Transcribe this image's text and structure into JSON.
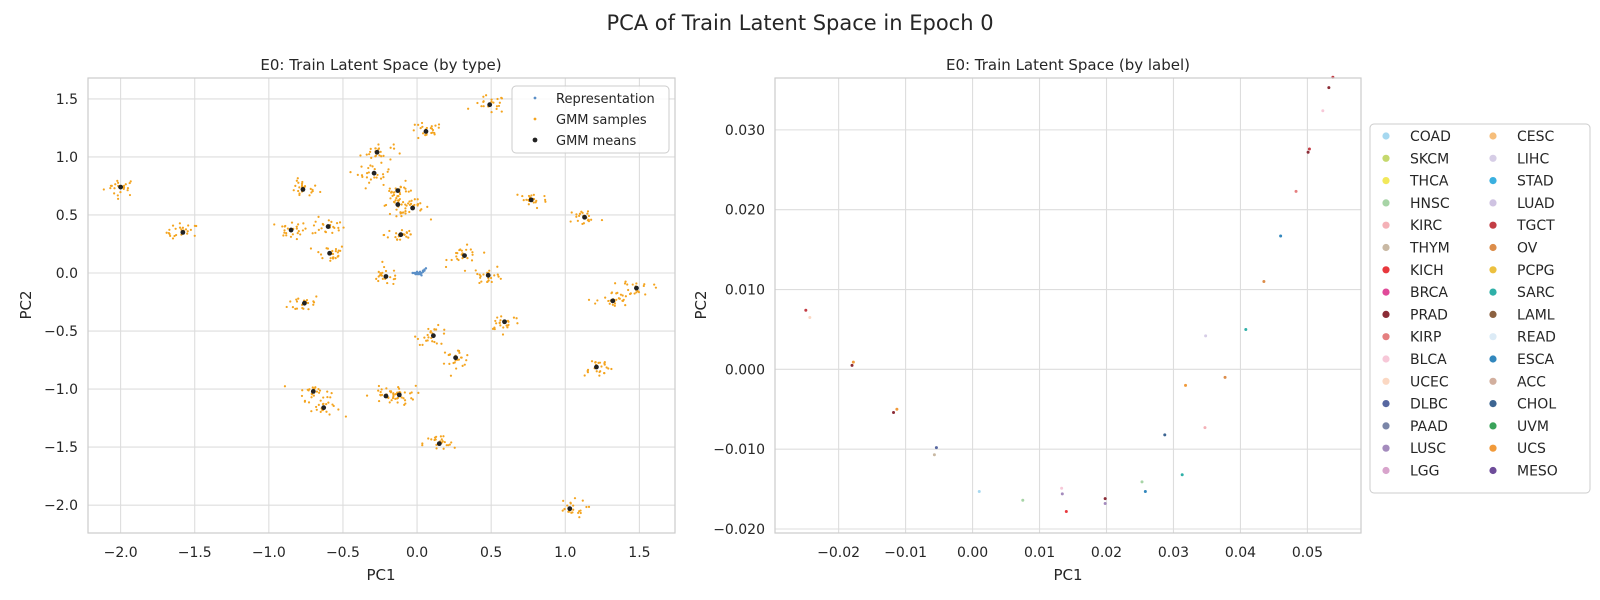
{
  "figure": {
    "title": "PCA of Train Latent Space in Epoch 0"
  },
  "chart_data": [
    {
      "type": "scatter",
      "title": "E0: Train Latent Space (by type)",
      "xlabel": "PC1",
      "ylabel": "PC2",
      "xlim": [
        -2.22,
        1.74
      ],
      "ylim": [
        -2.24,
        1.68
      ],
      "xticks": [
        -2.0,
        -1.5,
        -1.0,
        -0.5,
        0.0,
        0.5,
        1.0,
        1.5
      ],
      "xtick_labels": [
        "−2.0",
        "−1.5",
        "−1.0",
        "−0.5",
        "0.0",
        "0.5",
        "1.0",
        "1.5"
      ],
      "yticks": [
        -2.0,
        -1.5,
        -1.0,
        -0.5,
        0.0,
        0.5,
        1.0,
        1.5
      ],
      "ytick_labels": [
        "−2.0",
        "−1.5",
        "−1.0",
        "−0.5",
        "0.0",
        "0.5",
        "1.0",
        "1.5"
      ],
      "grid": true,
      "legend_position": "top-right",
      "series": [
        {
          "name": "Representation",
          "color": "#5b8fc7",
          "points": [
            [
              -0.03,
              0.0
            ],
            [
              -0.02,
              0.0
            ],
            [
              -0.01,
              0.0
            ],
            [
              0.0,
              -0.01
            ],
            [
              0.01,
              -0.01
            ],
            [
              0.02,
              -0.01
            ],
            [
              0.03,
              0.0
            ],
            [
              0.04,
              0.01
            ],
            [
              0.05,
              0.02
            ],
            [
              0.05,
              0.03
            ],
            [
              0.06,
              0.04
            ],
            [
              0.0,
              0.0
            ],
            [
              0.01,
              0.0
            ],
            [
              -0.01,
              -0.01
            ],
            [
              0.02,
              0.01
            ],
            [
              0.04,
              0.02
            ],
            [
              0.03,
              -0.02
            ],
            [
              0.0,
              0.01
            ]
          ]
        },
        {
          "name": "GMM samples",
          "color": "#f4a41f",
          "cluster_spread": 0.055,
          "samples_per_cluster": 24
        },
        {
          "name": "GMM means",
          "color": "#222222",
          "points": [
            [
              -2.0,
              0.74
            ],
            [
              -1.58,
              0.35
            ],
            [
              -0.85,
              0.37
            ],
            [
              -0.77,
              0.72
            ],
            [
              -0.6,
              0.4
            ],
            [
              -0.59,
              0.17
            ],
            [
              -0.76,
              -0.26
            ],
            [
              -0.7,
              -1.02
            ],
            [
              -0.63,
              -1.16
            ],
            [
              -0.27,
              1.04
            ],
            [
              -0.29,
              0.86
            ],
            [
              -0.13,
              0.71
            ],
            [
              -0.13,
              0.59
            ],
            [
              -0.03,
              0.56
            ],
            [
              -0.11,
              0.33
            ],
            [
              -0.21,
              -0.03
            ],
            [
              0.06,
              1.22
            ],
            [
              0.49,
              1.45
            ],
            [
              0.32,
              0.15
            ],
            [
              0.48,
              -0.02
            ],
            [
              0.11,
              -0.54
            ],
            [
              0.26,
              -0.73
            ],
            [
              -0.21,
              -1.06
            ],
            [
              -0.12,
              -1.05
            ],
            [
              0.15,
              -1.47
            ],
            [
              0.77,
              0.63
            ],
            [
              1.13,
              0.48
            ],
            [
              0.59,
              -0.42
            ],
            [
              1.32,
              -0.24
            ],
            [
              1.48,
              -0.13
            ],
            [
              1.21,
              -0.81
            ],
            [
              1.03,
              -2.03
            ]
          ]
        }
      ]
    },
    {
      "type": "scatter",
      "title": "E0: Train Latent Space (by label)",
      "xlabel": "PC1",
      "ylabel": "PC2",
      "xlim": [
        -0.0295,
        0.058
      ],
      "ylim": [
        -0.0205,
        0.0365
      ],
      "xticks": [
        -0.02,
        -0.01,
        0.0,
        0.01,
        0.02,
        0.03,
        0.04,
        0.05
      ],
      "xtick_labels": [
        "−0.02",
        "−0.01",
        "0.00",
        "0.01",
        "0.02",
        "0.03",
        "0.04",
        "0.05"
      ],
      "yticks": [
        -0.02,
        -0.01,
        0.0,
        0.01,
        0.02,
        0.03
      ],
      "ytick_labels": [
        "−0.020",
        "−0.010",
        "0.000",
        "0.010",
        "0.020",
        "0.030"
      ],
      "grid": true,
      "legend_position": "outside-right",
      "legend_columns": 2,
      "legend": [
        {
          "name": "COAD",
          "color": "#a6d8f0"
        },
        {
          "name": "SKCM",
          "color": "#c5d86d"
        },
        {
          "name": "THCA",
          "color": "#f2e85a"
        },
        {
          "name": "HNSC",
          "color": "#a7d4a6"
        },
        {
          "name": "KIRC",
          "color": "#f4b1b7"
        },
        {
          "name": "THYM",
          "color": "#c9b9a4"
        },
        {
          "name": "KICH",
          "color": "#e8383d"
        },
        {
          "name": "BRCA",
          "color": "#e04a99"
        },
        {
          "name": "PRAD",
          "color": "#8b2c36"
        },
        {
          "name": "KIRP",
          "color": "#e57f80"
        },
        {
          "name": "BLCA",
          "color": "#f7c8d8"
        },
        {
          "name": "UCEC",
          "color": "#fbd8c3"
        },
        {
          "name": "DLBC",
          "color": "#5767a0"
        },
        {
          "name": "PAAD",
          "color": "#7b86a8"
        },
        {
          "name": "LUSC",
          "color": "#a48bbd"
        },
        {
          "name": "LGG",
          "color": "#d8a4cc"
        },
        {
          "name": "CESC",
          "color": "#f6be7b"
        },
        {
          "name": "LIHC",
          "color": "#d6cde6"
        },
        {
          "name": "STAD",
          "color": "#3ab0e0"
        },
        {
          "name": "LUAD",
          "color": "#cfc3e2"
        },
        {
          "name": "TGCT",
          "color": "#c33d45"
        },
        {
          "name": "OV",
          "color": "#dc8d4a"
        },
        {
          "name": "PCPG",
          "color": "#ecc03f"
        },
        {
          "name": "SARC",
          "color": "#2fb0a8"
        },
        {
          "name": "LAML",
          "color": "#8c6140"
        },
        {
          "name": "READ",
          "color": "#dcebf6"
        },
        {
          "name": "ESCA",
          "color": "#3287bd"
        },
        {
          "name": "ACC",
          "color": "#d2af9e"
        },
        {
          "name": "CHOL",
          "color": "#3d6592"
        },
        {
          "name": "UVM",
          "color": "#3aa35a"
        },
        {
          "name": "UCS",
          "color": "#f19a3a"
        },
        {
          "name": "MESO",
          "color": "#6e4c9a"
        }
      ],
      "points": [
        {
          "x": 0.0538,
          "y": 0.0366,
          "label": "TGCT"
        },
        {
          "x": 0.0532,
          "y": 0.0353,
          "label": "PRAD"
        },
        {
          "x": 0.0523,
          "y": 0.0324,
          "label": "BLCA"
        },
        {
          "x": 0.0503,
          "y": 0.0276,
          "label": "TGCT"
        },
        {
          "x": 0.0501,
          "y": 0.0272,
          "label": "PRAD"
        },
        {
          "x": 0.0483,
          "y": 0.0223,
          "label": "KIRP"
        },
        {
          "x": 0.046,
          "y": 0.0167,
          "label": "ESCA"
        },
        {
          "x": 0.0435,
          "y": 0.011,
          "label": "OV"
        },
        {
          "x": 0.0408,
          "y": 0.005,
          "label": "SARC"
        },
        {
          "x": 0.0348,
          "y": 0.0042,
          "label": "LIHC"
        },
        {
          "x": 0.0377,
          "y": -0.001,
          "label": "OV"
        },
        {
          "x": 0.0318,
          "y": -0.002,
          "label": "UCS"
        },
        {
          "x": 0.0347,
          "y": -0.0073,
          "label": "KIRC"
        },
        {
          "x": 0.0287,
          "y": -0.0082,
          "label": "CHOL"
        },
        {
          "x": 0.0313,
          "y": -0.0132,
          "label": "SARC"
        },
        {
          "x": 0.0253,
          "y": -0.0141,
          "label": "HNSC"
        },
        {
          "x": 0.0258,
          "y": -0.0153,
          "label": "ESCA"
        },
        {
          "x": 0.0198,
          "y": -0.0162,
          "label": "PRAD"
        },
        {
          "x": 0.0198,
          "y": -0.0168,
          "label": "LUSC"
        },
        {
          "x": 0.014,
          "y": -0.0178,
          "label": "KICH"
        },
        {
          "x": 0.0133,
          "y": -0.0149,
          "label": "BLCA"
        },
        {
          "x": 0.0134,
          "y": -0.0156,
          "label": "LUSC"
        },
        {
          "x": 0.0075,
          "y": -0.0164,
          "label": "HNSC"
        },
        {
          "x": 0.001,
          "y": -0.0153,
          "label": "COAD"
        },
        {
          "x": -0.0054,
          "y": -0.0098,
          "label": "DLBC"
        },
        {
          "x": -0.0057,
          "y": -0.0107,
          "label": "THYM"
        },
        {
          "x": -0.0118,
          "y": -0.0054,
          "label": "PRAD"
        },
        {
          "x": -0.0113,
          "y": -0.005,
          "label": "UCS"
        },
        {
          "x": -0.018,
          "y": 0.0005,
          "label": "PRAD"
        },
        {
          "x": -0.0178,
          "y": 0.0009,
          "label": "UCS"
        },
        {
          "x": -0.0249,
          "y": 0.0074,
          "label": "TGCT"
        },
        {
          "x": -0.0243,
          "y": 0.0065,
          "label": "UCEC"
        }
      ]
    }
  ]
}
